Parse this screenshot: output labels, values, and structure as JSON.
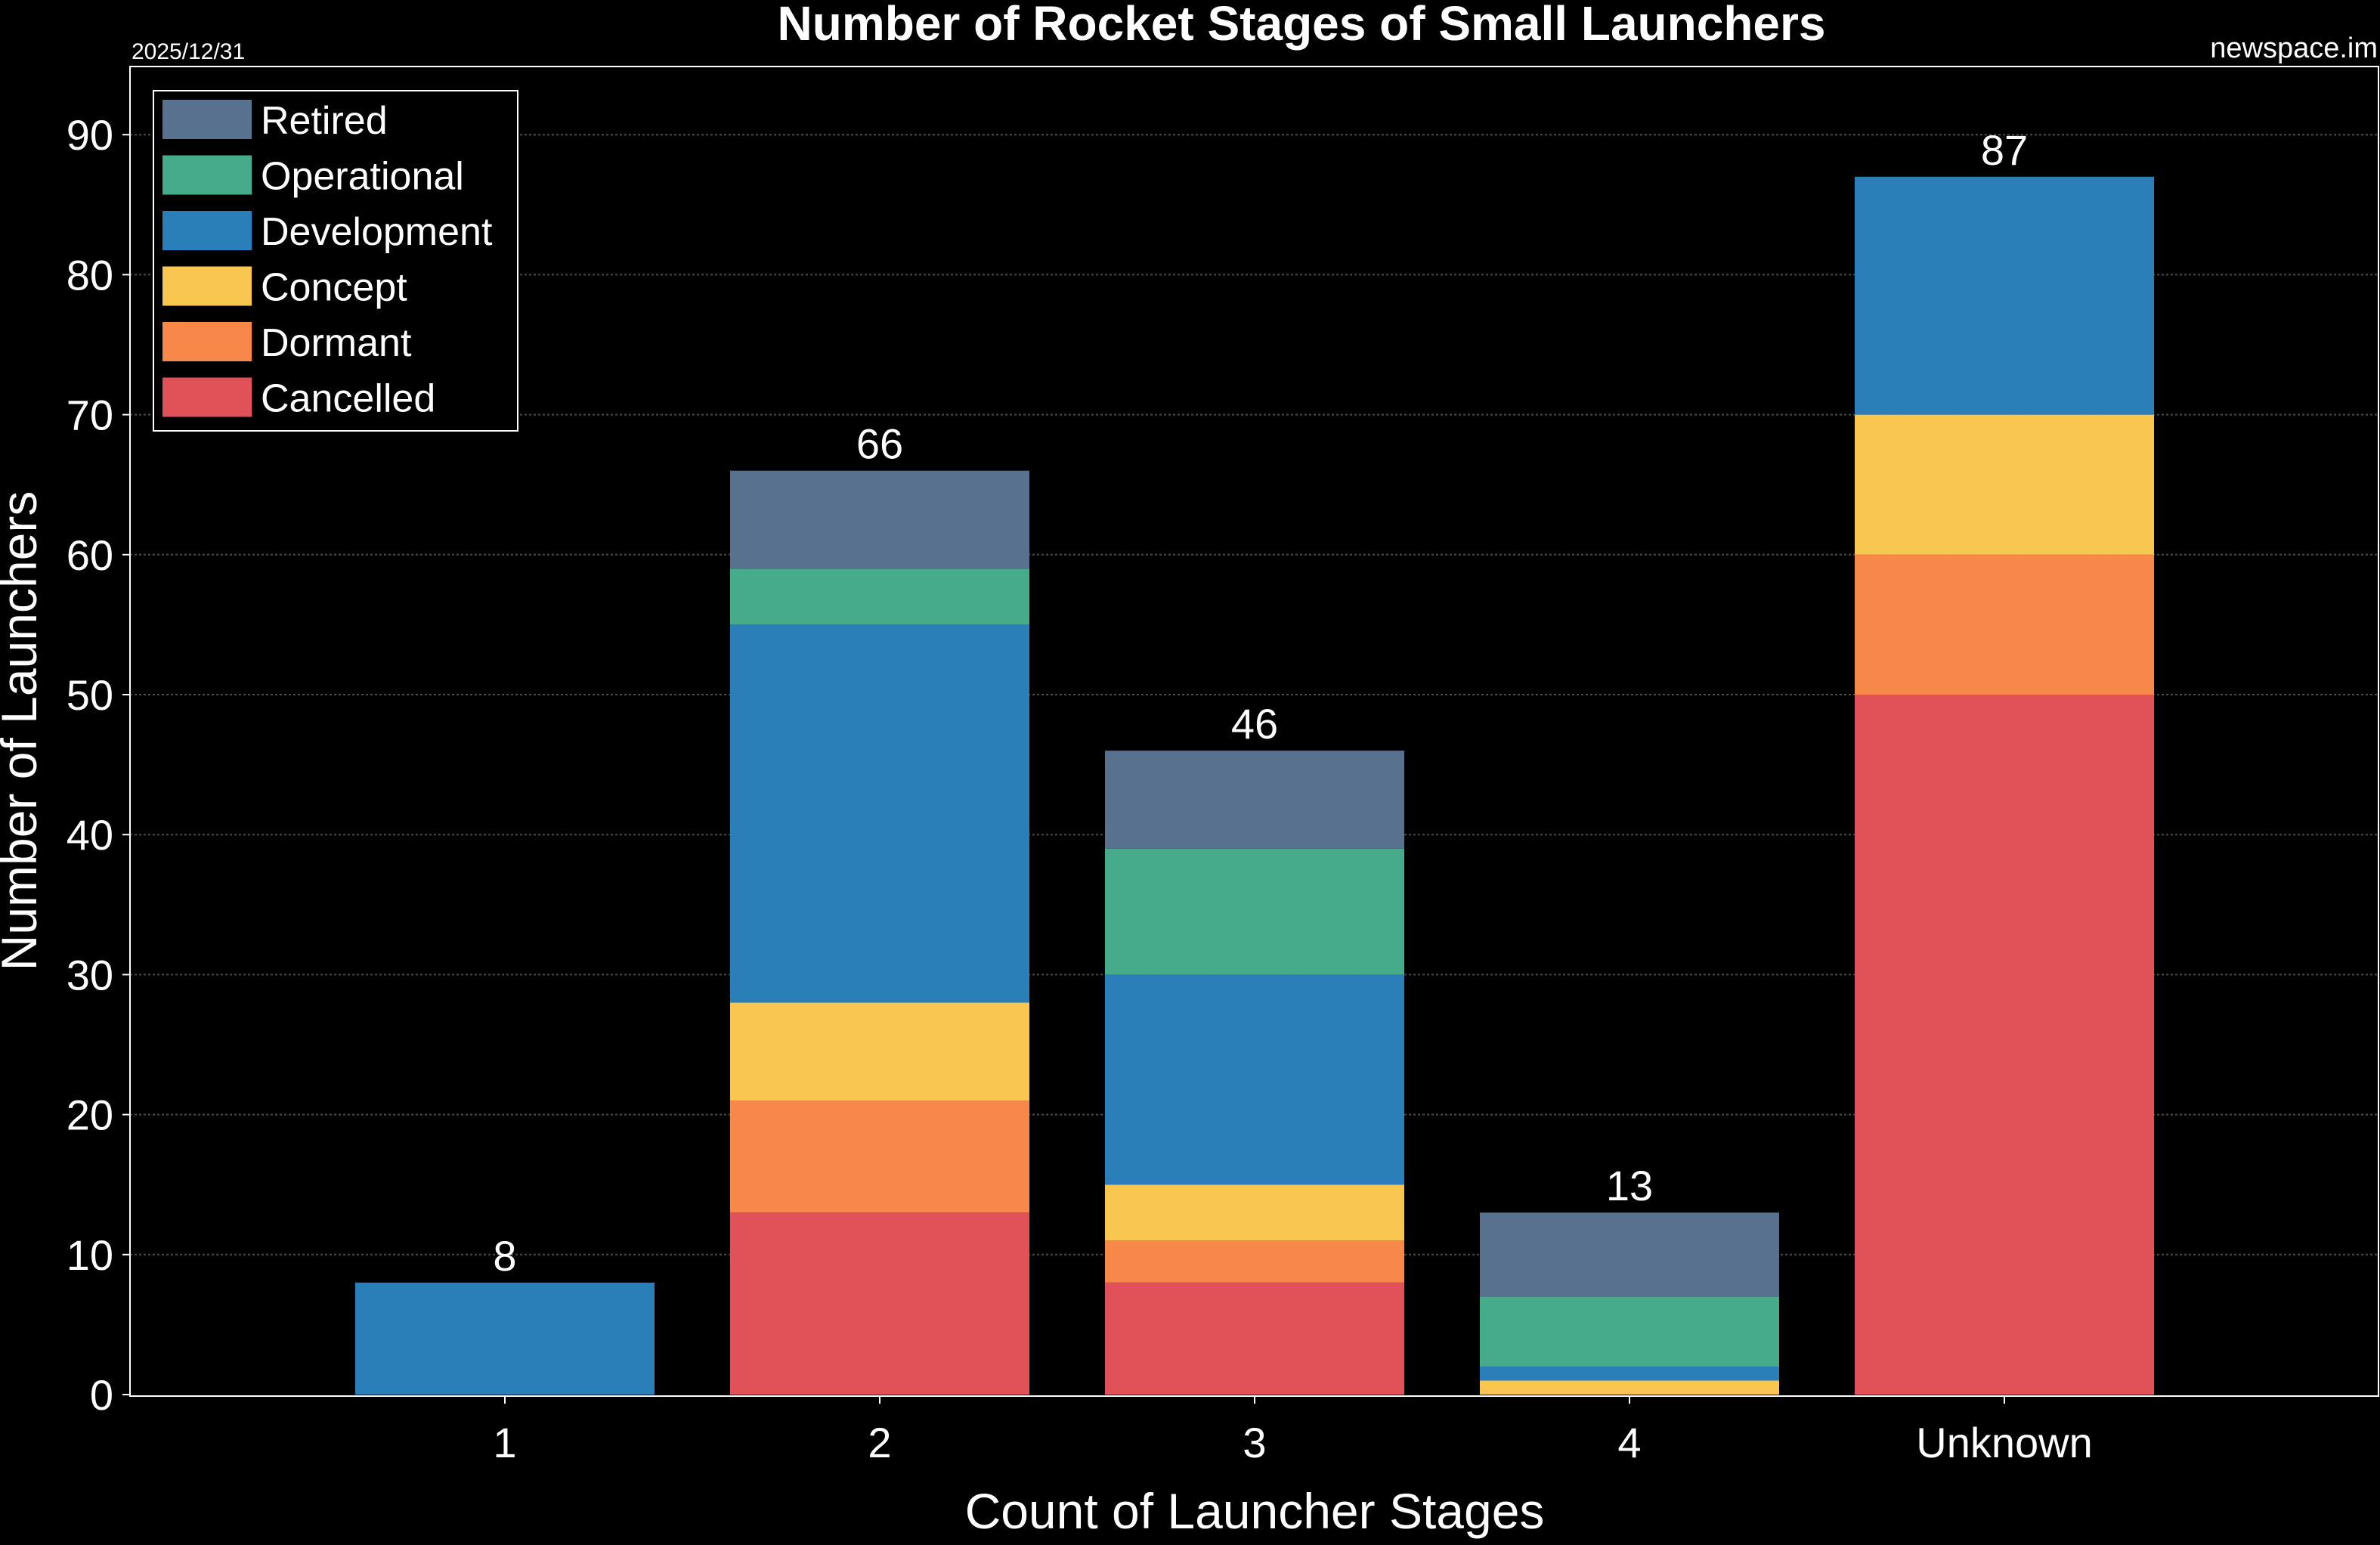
{
  "chart_data": {
    "type": "bar",
    "stacked": true,
    "title": "Number of Rocket Stages of Small Launchers",
    "date_label": "2025/12/31",
    "source_label": "newspace.im",
    "xlabel": "Count of Launcher Stages",
    "ylabel": "Number of Launchers",
    "ylim": [
      0,
      95
    ],
    "yticks": [
      0,
      10,
      20,
      30,
      40,
      50,
      60,
      70,
      80,
      90
    ],
    "grid": true,
    "legend_position": "top-left",
    "categories": [
      "1",
      "2",
      "3",
      "4",
      "Unknown"
    ],
    "totals": [
      8,
      66,
      46,
      13,
      87
    ],
    "series": [
      {
        "name": "Cancelled",
        "color": "#e05257",
        "values": [
          0,
          13,
          8,
          0,
          50
        ]
      },
      {
        "name": "Dormant",
        "color": "#f7884a",
        "values": [
          0,
          8,
          3,
          0,
          10
        ]
      },
      {
        "name": "Concept",
        "color": "#f9c750",
        "values": [
          0,
          7,
          4,
          1,
          10
        ]
      },
      {
        "name": "Development",
        "color": "#2a7fb8",
        "values": [
          8,
          27,
          15,
          1,
          17
        ]
      },
      {
        "name": "Operational",
        "color": "#45ab8a",
        "values": [
          0,
          4,
          9,
          5,
          0
        ]
      },
      {
        "name": "Retired",
        "color": "#57718f",
        "values": [
          0,
          7,
          7,
          6,
          0
        ]
      }
    ]
  }
}
